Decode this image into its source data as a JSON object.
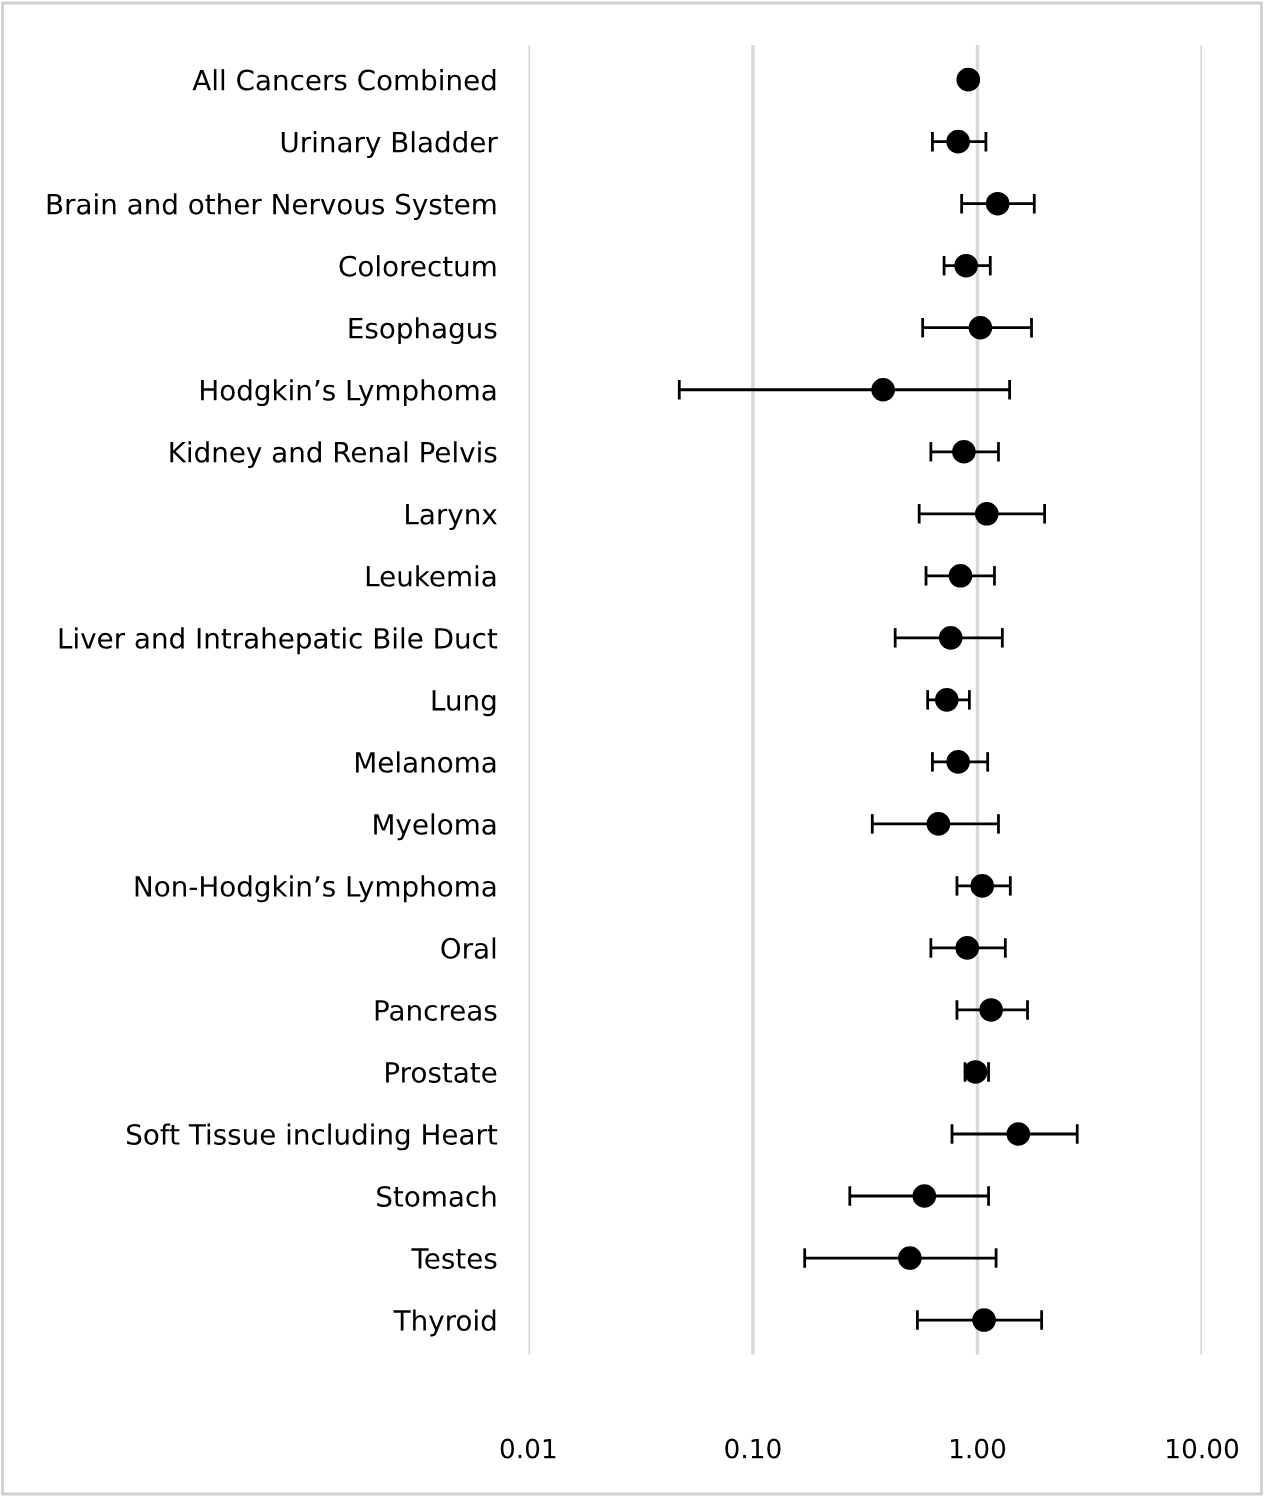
{
  "chart_data": {
    "type": "scatter",
    "orientation": "horizontal",
    "log": "x",
    "grid": "x",
    "marker": "circle",
    "color": "#000000",
    "categories": [
      "All Cancers Combined",
      "Urinary Bladder",
      "Brain and other Nervous System",
      "Colorectum",
      "Esophagus",
      "Hodgkin’s Lymphoma",
      "Kidney and Renal Pelvis",
      "Larynx",
      "Leukemia",
      "Liver and Intrahepatic Bile Duct",
      "Lung",
      "Melanoma",
      "Myeloma",
      "Non-Hodgkin’s Lymphoma",
      "Oral",
      "Pancreas",
      "Prostate",
      "Soft Tissue including Heart",
      "Stomach",
      "Testes",
      "Thyroid"
    ],
    "values": [
      0.91,
      0.82,
      1.23,
      0.89,
      1.03,
      0.38,
      0.87,
      1.1,
      0.84,
      0.76,
      0.73,
      0.82,
      0.67,
      1.05,
      0.9,
      1.15,
      0.98,
      1.52,
      0.58,
      0.5,
      1.07
    ],
    "errors": [
      null,
      [
        0.63,
        1.09
      ],
      [
        0.85,
        1.79
      ],
      [
        0.71,
        1.14
      ],
      [
        0.57,
        1.74
      ],
      [
        0.047,
        1.39
      ],
      [
        0.62,
        1.24
      ],
      [
        0.55,
        1.99
      ],
      [
        0.59,
        1.19
      ],
      [
        0.43,
        1.29
      ],
      [
        0.6,
        0.92
      ],
      [
        0.63,
        1.11
      ],
      [
        0.34,
        1.24
      ],
      [
        0.81,
        1.4
      ],
      [
        0.62,
        1.33
      ],
      [
        0.81,
        1.67
      ],
      [
        0.88,
        1.12
      ],
      [
        0.77,
        2.78
      ],
      [
        0.27,
        1.12
      ],
      [
        0.17,
        1.21
      ],
      [
        0.54,
        1.93
      ]
    ],
    "xlim": [
      0.01,
      10
    ],
    "xticks": [
      {
        "value": 0.01,
        "label": "0.01"
      },
      {
        "value": 0.1,
        "label": "0.10"
      },
      {
        "value": 1,
        "label": "1.00"
      },
      {
        "value": 10,
        "label": "10.00"
      }
    ]
  }
}
